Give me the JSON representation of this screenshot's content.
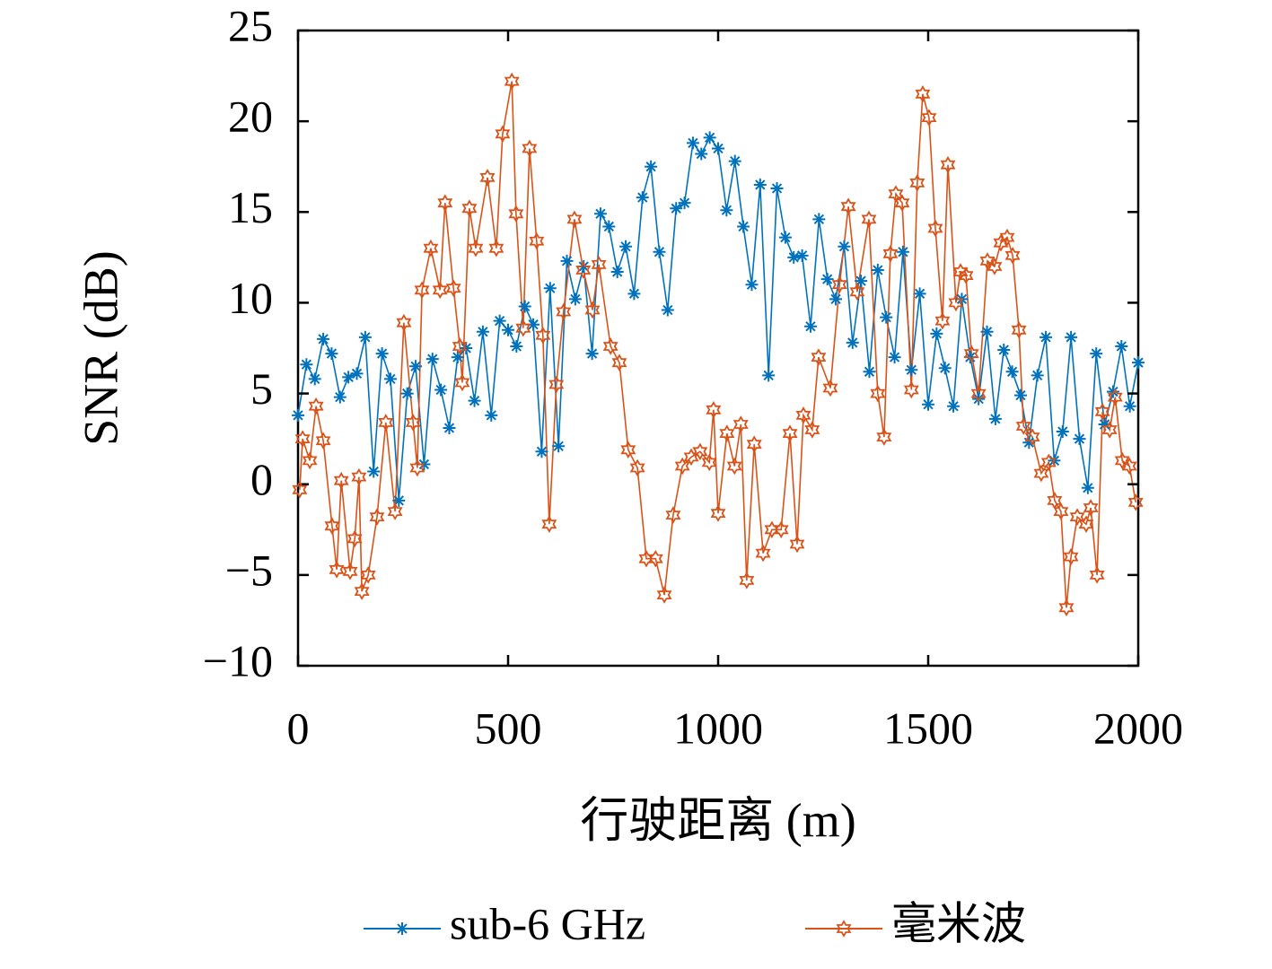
{
  "chart_data": {
    "type": "line",
    "xlabel": "行驶距离 (m)",
    "ylabel": "SNR (dB)",
    "xlim": [
      0,
      2000
    ],
    "xticks": [
      0,
      500,
      1000,
      1500,
      2000
    ],
    "ylim": [
      -10,
      25
    ],
    "yticks": [
      {
        "value": -10,
        "label": "−10"
      },
      {
        "value": -5,
        "label": "−5"
      },
      0,
      5,
      10,
      15,
      20,
      25
    ],
    "grid": false,
    "legend": "bottom",
    "series": [
      {
        "name": "sub-6 GHz",
        "color": "#0072bd",
        "marker": "asterisk",
        "x": [
          0,
          20,
          40,
          60,
          80,
          100,
          120,
          140,
          160,
          180,
          200,
          220,
          240,
          260,
          280,
          300,
          320,
          340,
          360,
          380,
          400,
          420,
          440,
          460,
          480,
          500,
          520,
          540,
          560,
          580,
          600,
          620,
          640,
          660,
          680,
          700,
          720,
          740,
          760,
          780,
          800,
          820,
          840,
          860,
          880,
          900,
          920,
          940,
          960,
          980,
          1000,
          1020,
          1040,
          1060,
          1080,
          1100,
          1120,
          1140,
          1160,
          1180,
          1200,
          1220,
          1240,
          1260,
          1280,
          1300,
          1320,
          1340,
          1360,
          1380,
          1400,
          1420,
          1440,
          1460,
          1480,
          1500,
          1520,
          1540,
          1560,
          1580,
          1600,
          1620,
          1640,
          1660,
          1680,
          1700,
          1720,
          1740,
          1760,
          1780,
          1800,
          1820,
          1840,
          1860,
          1880,
          1900,
          1920,
          1940,
          1960,
          1980,
          2000
        ],
        "values": [
          3.8,
          6.6,
          5.8,
          8.0,
          7.2,
          4.8,
          5.9,
          6.1,
          8.1,
          0.7,
          7.2,
          5.8,
          -0.9,
          5.0,
          6.5,
          1.1,
          6.9,
          5.2,
          3.1,
          7.0,
          7.5,
          4.6,
          8.4,
          3.8,
          9.0,
          8.5,
          7.6,
          9.8,
          8.8,
          1.8,
          10.8,
          2.1,
          12.3,
          10.2,
          12.0,
          7.2,
          14.9,
          14.2,
          11.7,
          13.1,
          10.5,
          15.8,
          17.5,
          12.8,
          9.6,
          15.2,
          15.5,
          18.8,
          18.2,
          19.1,
          18.5,
          15.1,
          17.8,
          14.2,
          11.0,
          16.5,
          6.0,
          16.3,
          13.6,
          12.5,
          12.6,
          8.7,
          14.6,
          11.3,
          10.2,
          13.1,
          7.8,
          11.2,
          6.2,
          11.8,
          9.2,
          7.0,
          12.8,
          6.3,
          10.5,
          4.4,
          8.3,
          6.4,
          4.3,
          10.2,
          7.0,
          4.7,
          8.4,
          3.6,
          7.4,
          6.2,
          4.9,
          2.3,
          6.0,
          8.1,
          1.3,
          2.9,
          8.1,
          2.5,
          -0.2,
          7.2,
          3.3,
          5.1,
          7.6,
          4.3,
          6.7
        ]
      },
      {
        "name": "毫米波",
        "color": "#d95319",
        "marker": "hexagram",
        "x": [
          4,
          11,
          28,
          43,
          60,
          81,
          92,
          103,
          124,
          135,
          145,
          152,
          167,
          188,
          209,
          231,
          252,
          274,
          284,
          295,
          316,
          338,
          350,
          370,
          385,
          391,
          408,
          423,
          451,
          472,
          487,
          509,
          519,
          536,
          551,
          568,
          583,
          598,
          615,
          632,
          658,
          679,
          701,
          716,
          744,
          765,
          786,
          808,
          829,
          851,
          872,
          893,
          915,
          936,
          957,
          979,
          989,
          1000,
          1021,
          1039,
          1054,
          1068,
          1086,
          1107,
          1128,
          1150,
          1171,
          1188,
          1203,
          1224,
          1239,
          1267,
          1289,
          1310,
          1331,
          1359,
          1380,
          1395,
          1410,
          1423,
          1438,
          1460,
          1474,
          1487,
          1502,
          1517,
          1534,
          1547,
          1566,
          1577,
          1590,
          1603,
          1620,
          1641,
          1658,
          1673,
          1688,
          1701,
          1716,
          1727,
          1748,
          1769,
          1787,
          1801,
          1816,
          1829,
          1840,
          1855,
          1876,
          1887,
          1902,
          1915,
          1932,
          1945,
          1962,
          1979,
          1994
        ],
        "values": [
          -0.3,
          2.5,
          1.3,
          4.3,
          2.4,
          -2.3,
          -4.7,
          0.2,
          -4.8,
          -3.0,
          0.4,
          -5.9,
          -5.0,
          -1.8,
          3.4,
          -1.5,
          8.9,
          3.4,
          0.9,
          10.7,
          13.0,
          10.7,
          15.5,
          10.8,
          7.6,
          5.6,
          15.2,
          13.0,
          16.9,
          13.0,
          19.3,
          22.2,
          14.9,
          8.6,
          18.5,
          13.4,
          8.2,
          -2.2,
          5.5,
          9.5,
          14.6,
          11.8,
          9.6,
          12.1,
          7.6,
          6.7,
          1.9,
          0.9,
          -4.1,
          -4.1,
          -6.1,
          -1.7,
          1.0,
          1.5,
          1.8,
          1.2,
          4.1,
          -1.6,
          2.8,
          1.0,
          3.3,
          -5.3,
          2.2,
          -3.8,
          -2.5,
          -2.5,
          2.8,
          -3.3,
          3.8,
          3.0,
          7.0,
          5.3,
          11.0,
          15.3,
          10.6,
          14.6,
          5.0,
          2.6,
          12.7,
          16.0,
          15.5,
          5.2,
          16.6,
          21.5,
          20.2,
          14.1,
          9.0,
          17.6,
          10.0,
          11.7,
          11.5,
          7.2,
          5.0,
          12.3,
          12.0,
          13.3,
          13.6,
          12.6,
          8.5,
          3.2,
          2.6,
          0.6,
          1.2,
          -0.9,
          -1.5,
          -6.8,
          -4.0,
          -1.8,
          -2.2,
          -1.3,
          -5.0,
          4.0,
          3.0,
          4.8,
          1.3,
          1.0,
          -1.0
        ]
      }
    ]
  }
}
